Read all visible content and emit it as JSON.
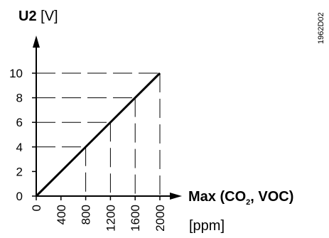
{
  "chart_data": {
    "type": "line",
    "ylabel": {
      "bold": "U2",
      "unit": " [V]"
    },
    "xlabel": {
      "prefix": "Max (CO",
      "sub": "2",
      "suffix": ", VOC)",
      "unit": "[ppm]"
    },
    "figure_code": "1962D02",
    "xlim": [
      0,
      2000
    ],
    "ylim": [
      0,
      10
    ],
    "x_ticks": [
      0,
      400,
      800,
      1200,
      1600,
      2000
    ],
    "y_ticks": [
      0,
      2,
      4,
      6,
      8,
      10
    ],
    "series": [
      {
        "x": [
          0,
          2000
        ],
        "y": [
          0,
          10
        ]
      }
    ],
    "guides": [
      {
        "x": 800,
        "y": 4
      },
      {
        "x": 1200,
        "y": 6
      },
      {
        "x": 1600,
        "y": 8
      },
      {
        "x": 2000,
        "y": 10
      }
    ],
    "grid": false,
    "legend": "none"
  }
}
